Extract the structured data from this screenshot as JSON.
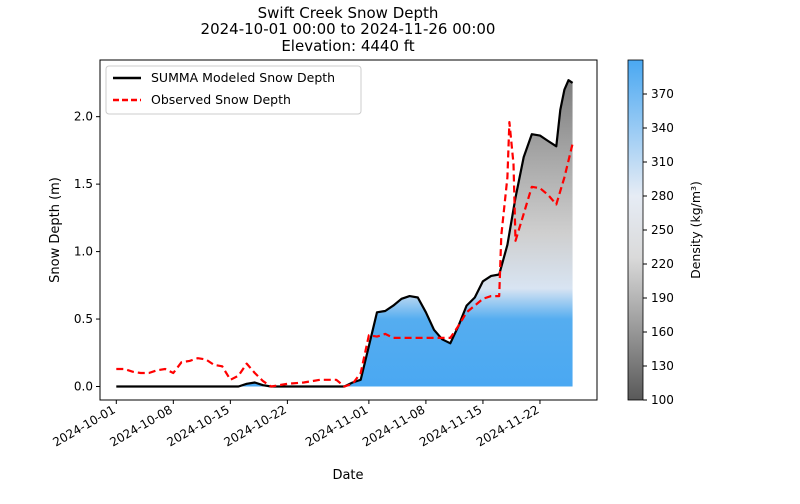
{
  "chart_data": {
    "type": "line",
    "title": "Swift Creek Snow Depth",
    "subtitle": "2024-10-01 00:00 to 2024-11-26 00:00",
    "elevation_label": "Elevation: 4440 ft",
    "xlabel": "Date",
    "ylabel": "Snow Depth (m)",
    "xlim": [
      "2024-09-29",
      "2024-11-29"
    ],
    "ylim": [
      -0.1,
      2.42
    ],
    "x_ticks": [
      "2024-10-01",
      "2024-10-08",
      "2024-10-15",
      "2024-10-22",
      "2024-11-01",
      "2024-11-08",
      "2024-11-15",
      "2024-11-22"
    ],
    "y_ticks": [
      0.0,
      0.5,
      1.0,
      1.5,
      2.0
    ],
    "y_tick_labels": [
      "0.0",
      "0.5",
      "1.0",
      "1.5",
      "2.0"
    ],
    "grid": false,
    "legend_position": "top-left",
    "series": [
      {
        "name": "SUMMA Modeled Snow Depth",
        "color": "#000000",
        "style": "solid",
        "points": [
          [
            "2024-10-01",
            0.0
          ],
          [
            "2024-10-16",
            0.0
          ],
          [
            "2024-10-17",
            0.02
          ],
          [
            "2024-10-18",
            0.03
          ],
          [
            "2024-10-19",
            0.01
          ],
          [
            "2024-10-20",
            0.0
          ],
          [
            "2024-10-29",
            0.0
          ],
          [
            "2024-10-30",
            0.03
          ],
          [
            "2024-10-31",
            0.05
          ],
          [
            "2024-11-01",
            0.3
          ],
          [
            "2024-11-02",
            0.55
          ],
          [
            "2024-11-03",
            0.56
          ],
          [
            "2024-11-04",
            0.6
          ],
          [
            "2024-11-05",
            0.65
          ],
          [
            "2024-11-06",
            0.67
          ],
          [
            "2024-11-07",
            0.66
          ],
          [
            "2024-11-08",
            0.55
          ],
          [
            "2024-11-09",
            0.42
          ],
          [
            "2024-11-10",
            0.35
          ],
          [
            "2024-11-11",
            0.32
          ],
          [
            "2024-11-12",
            0.45
          ],
          [
            "2024-11-13",
            0.6
          ],
          [
            "2024-11-14",
            0.66
          ],
          [
            "2024-11-15",
            0.78
          ],
          [
            "2024-11-16",
            0.82
          ],
          [
            "2024-11-17",
            0.83
          ],
          [
            "2024-11-18",
            1.05
          ],
          [
            "2024-11-19",
            1.4
          ],
          [
            "2024-11-20",
            1.7
          ],
          [
            "2024-11-21",
            1.87
          ],
          [
            "2024-11-22",
            1.86
          ],
          [
            "2024-11-23",
            1.82
          ],
          [
            "2024-11-24",
            1.78
          ],
          [
            "2024-11-24T12:00",
            2.05
          ],
          [
            "2024-11-25",
            2.2
          ],
          [
            "2024-11-25T12:00",
            2.27
          ],
          [
            "2024-11-26",
            2.25
          ]
        ]
      },
      {
        "name": "Observed Snow Depth",
        "color": "#ff0000",
        "style": "dashed",
        "points": [
          [
            "2024-10-01",
            0.13
          ],
          [
            "2024-10-02",
            0.13
          ],
          [
            "2024-10-03",
            0.11
          ],
          [
            "2024-10-04",
            0.1
          ],
          [
            "2024-10-05",
            0.1
          ],
          [
            "2024-10-06",
            0.12
          ],
          [
            "2024-10-07",
            0.13
          ],
          [
            "2024-10-08",
            0.1
          ],
          [
            "2024-10-09",
            0.18
          ],
          [
            "2024-10-10",
            0.19
          ],
          [
            "2024-10-11",
            0.21
          ],
          [
            "2024-10-12",
            0.2
          ],
          [
            "2024-10-13",
            0.16
          ],
          [
            "2024-10-14",
            0.15
          ],
          [
            "2024-10-15",
            0.05
          ],
          [
            "2024-10-16",
            0.08
          ],
          [
            "2024-10-17",
            0.17
          ],
          [
            "2024-10-18",
            0.1
          ],
          [
            "2024-10-19",
            0.04
          ],
          [
            "2024-10-20",
            0.0
          ],
          [
            "2024-10-22",
            0.02
          ],
          [
            "2024-10-24",
            0.03
          ],
          [
            "2024-10-26",
            0.05
          ],
          [
            "2024-10-28",
            0.05
          ],
          [
            "2024-10-29",
            0.0
          ],
          [
            "2024-10-30",
            0.02
          ],
          [
            "2024-10-31",
            0.1
          ],
          [
            "2024-11-01",
            0.38
          ],
          [
            "2024-11-02",
            0.37
          ],
          [
            "2024-11-03",
            0.39
          ],
          [
            "2024-11-04",
            0.36
          ],
          [
            "2024-11-11",
            0.36
          ],
          [
            "2024-11-12",
            0.45
          ],
          [
            "2024-11-13",
            0.55
          ],
          [
            "2024-11-14",
            0.6
          ],
          [
            "2024-11-15",
            0.65
          ],
          [
            "2024-11-16",
            0.67
          ],
          [
            "2024-11-17",
            0.67
          ],
          [
            "2024-11-17T06:00",
            1.12
          ],
          [
            "2024-11-18",
            1.55
          ],
          [
            "2024-11-18T06:00",
            1.96
          ],
          [
            "2024-11-18T18:00",
            1.65
          ],
          [
            "2024-11-19",
            1.08
          ],
          [
            "2024-11-20",
            1.28
          ],
          [
            "2024-11-21",
            1.48
          ],
          [
            "2024-11-22",
            1.47
          ],
          [
            "2024-11-23",
            1.42
          ],
          [
            "2024-11-24",
            1.35
          ],
          [
            "2024-11-25",
            1.55
          ],
          [
            "2024-11-26",
            1.8
          ]
        ]
      }
    ],
    "density_field": {
      "label": "Density (kg/m³)",
      "colorbar_ticks": [
        100,
        130,
        160,
        190,
        220,
        250,
        280,
        310,
        340,
        370
      ],
      "range": [
        100,
        400
      ],
      "colormap": [
        "#595959",
        "#e8e8e8",
        "#4aa8f2"
      ]
    }
  }
}
